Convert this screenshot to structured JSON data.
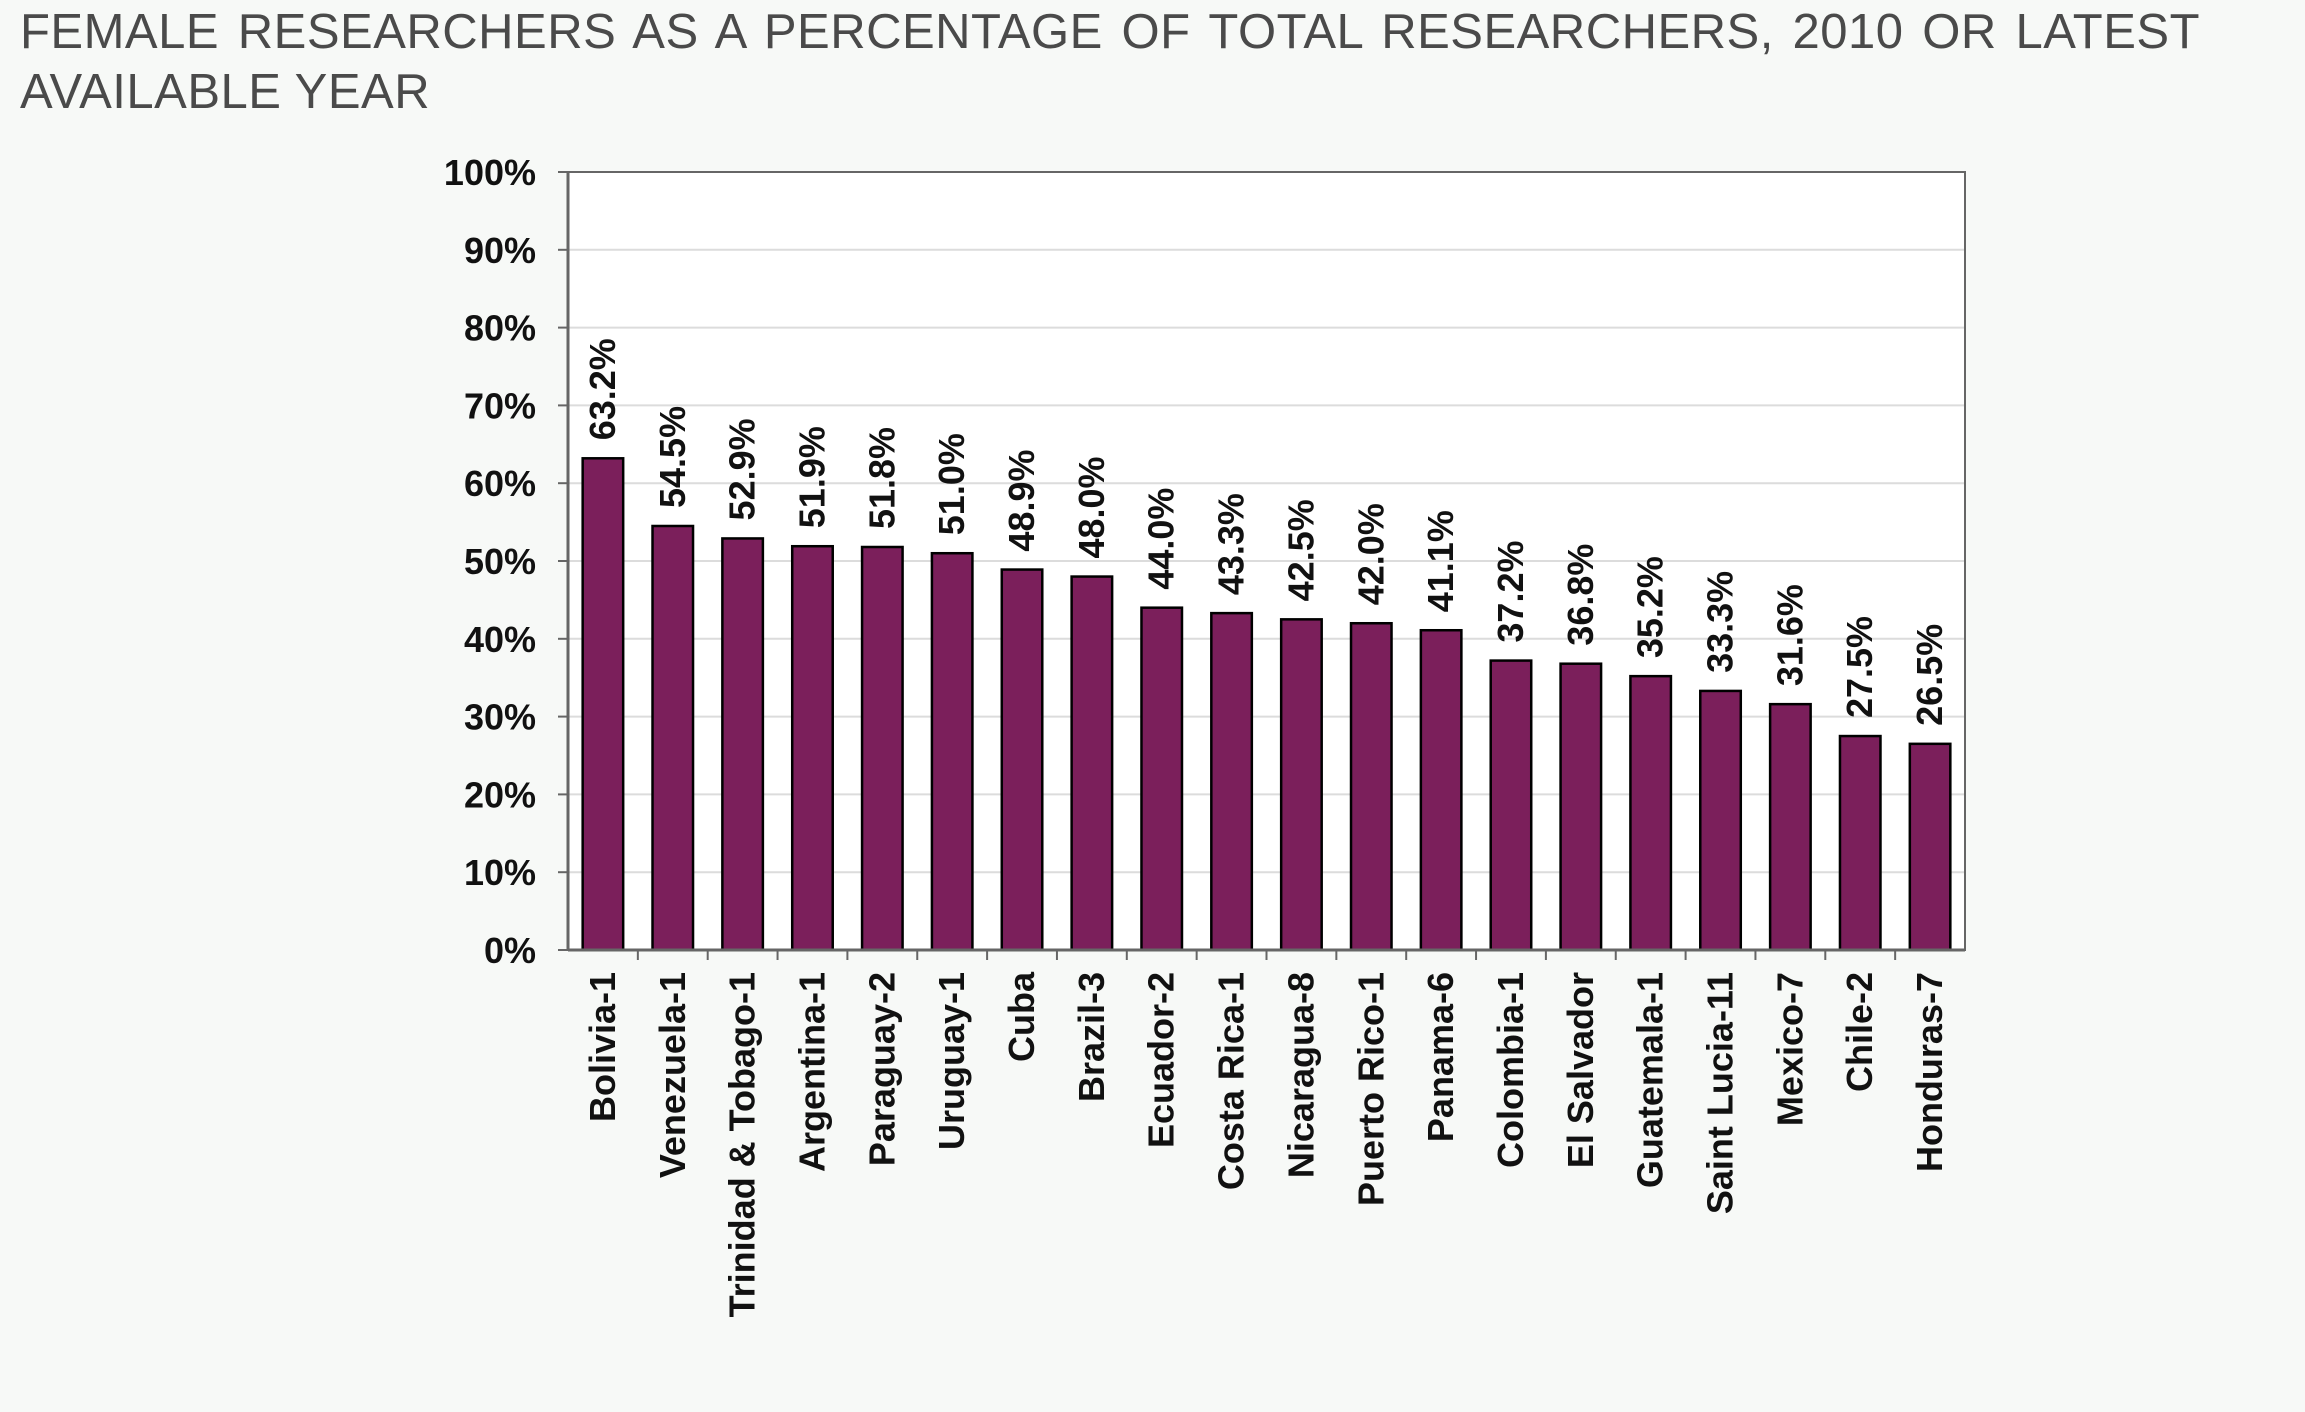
{
  "chart_data": {
    "type": "bar",
    "title": "FEMALE RESEARCHERS AS A PERCENTAGE OF TOTAL RESEARCHERS, 2010 OR LATEST AVAILABLE YEAR",
    "xlabel": "",
    "ylabel": "",
    "categories": [
      "Bolivia-1",
      "Venezuela-1",
      "Trinidad & Tobago-1",
      "Argentina-1",
      "Paraguay-2",
      "Uruguay-1",
      "Cuba",
      "Brazil-3",
      "Ecuador-2",
      "Costa Rica-1",
      "Nicaragua-8",
      "Puerto Rico-1",
      "Panama-6",
      "Colombia-1",
      "El Salvador",
      "Guatemala-1",
      "Saint Lucia-11",
      "Mexico-7",
      "Chile-2",
      "Honduras-7"
    ],
    "values": [
      63.2,
      54.5,
      52.9,
      51.9,
      51.8,
      51.0,
      48.9,
      48.0,
      44.0,
      43.3,
      42.5,
      42.0,
      41.1,
      37.2,
      36.8,
      35.2,
      33.3,
      31.6,
      27.5,
      26.5
    ],
    "value_labels": [
      "63.2%",
      "54.5%",
      "52.9%",
      "51.9%",
      "51.8%",
      "51.0%",
      "48.9%",
      "48.0%",
      "44.0%",
      "43.3%",
      "42.5%",
      "42.0%",
      "41.1%",
      "37.2%",
      "36.8%",
      "35.2%",
      "33.3%",
      "31.6%",
      "27.5%",
      "26.5%"
    ],
    "ylim": [
      0,
      100
    ],
    "yticks": [
      "0%",
      "10%",
      "20%",
      "30%",
      "40%",
      "50%",
      "60%",
      "70%",
      "80%",
      "90%",
      "100%"
    ],
    "grid": true,
    "legend": "none",
    "colors": {
      "bar": "#7b1f5b",
      "bar_edge": "#000000",
      "grid": "#dcdcdc",
      "axis": "#666666",
      "text": "#111111",
      "title": "#4a4a4a",
      "background": "#f7f9f7",
      "plot_background": "#ffffff"
    }
  }
}
